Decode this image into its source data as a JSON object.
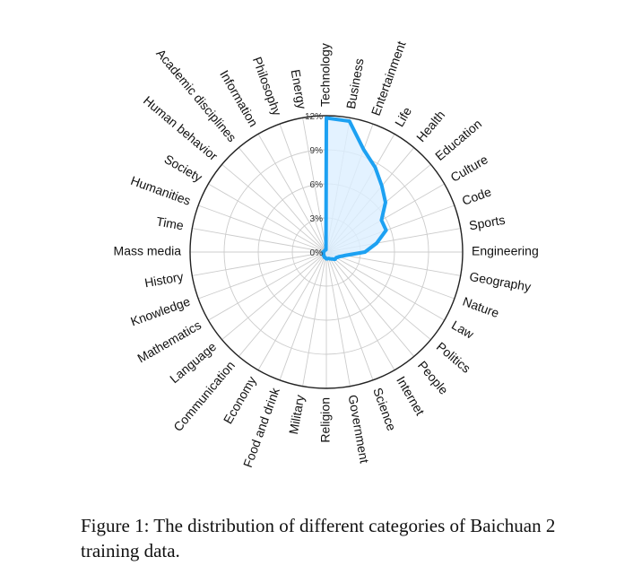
{
  "chart_data": {
    "type": "radar",
    "title": "",
    "categories": [
      "Technology",
      "Business",
      "Entertainment",
      "Life",
      "Health",
      "Education",
      "Culture",
      "Code",
      "Sports",
      "Engineering",
      "Geography",
      "Nature",
      "Law",
      "Politics",
      "People",
      "Internet",
      "Science",
      "Government",
      "Religion",
      "Military",
      "Food and drink",
      "Economy",
      "Communication",
      "Language",
      "Mathematics",
      "Knowledge",
      "History",
      "Mass media",
      "Time",
      "Humanities",
      "Society",
      "Human behavior",
      "Academic disciplines",
      "Information",
      "Philosophy",
      "Energy"
    ],
    "values": [
      11.8,
      11.7,
      9.6,
      8.6,
      7.6,
      6.8,
      5.6,
      5.6,
      4.5,
      3.4,
      1.7,
      1.2,
      1.0,
      1.0,
      0.8,
      0.7,
      0.6,
      0.6,
      0.6,
      0.5,
      0.5,
      0.4,
      0.4,
      0.3,
      0.3,
      0.3,
      0.3,
      0.3,
      0.2,
      0.2,
      0.2,
      0.2,
      0.2,
      0.2,
      0.2,
      0.2
    ],
    "rlim": [
      0,
      12
    ],
    "rticks": [
      0,
      3,
      6,
      9,
      12
    ],
    "rtick_labels": [
      "0%",
      "3%",
      "6%",
      "9%",
      "12%"
    ],
    "grid": true,
    "line_color": "#1da1f2",
    "fill_color": "#dcefff",
    "grid_color": "#cccccc",
    "axis_color": "#222222"
  },
  "caption": {
    "text": "Figure 1: The distribution of different categories of Baichuan 2 training data."
  }
}
